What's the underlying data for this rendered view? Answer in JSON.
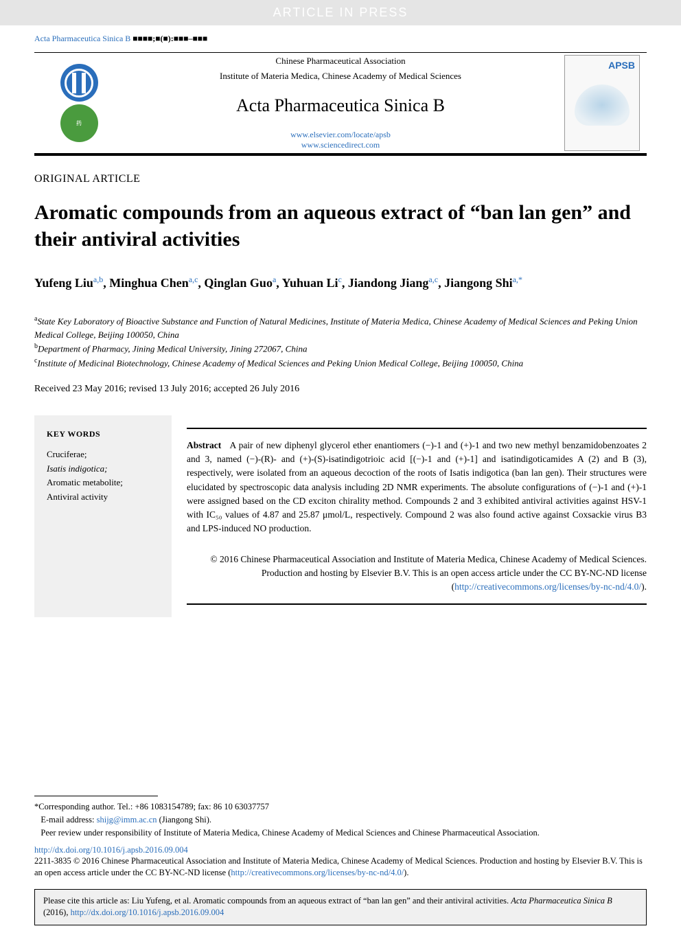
{
  "banner": "ARTICLE IN PRESS",
  "journalRef": {
    "journal": "Acta Pharmaceutica Sinica B",
    "issue": "■■■■;■(■):■■■–■■■"
  },
  "header": {
    "assoc": "Chinese Pharmaceutical Association",
    "inst": "Institute of Materia Medica, Chinese Academy of Medical Sciences",
    "journalName": "Acta Pharmaceutica Sinica B",
    "link1": "www.elsevier.com/locate/apsb",
    "link2": "www.sciencedirect.com",
    "coverLabel": "APSB"
  },
  "articleType": "ORIGINAL ARTICLE",
  "title": "Aromatic compounds from an aqueous extract of “ban lan gen” and their antiviral activities",
  "authors": [
    {
      "name": "Yufeng Liu",
      "sup": "a,b"
    },
    {
      "name": "Minghua Chen",
      "sup": "a,c"
    },
    {
      "name": "Qinglan Guo",
      "sup": "a"
    },
    {
      "name": "Yuhuan Li",
      "sup": "c"
    },
    {
      "name": "Jiandong Jiang",
      "sup": "a,c"
    },
    {
      "name": "Jiangong Shi",
      "sup": "a,",
      "star": true
    }
  ],
  "affiliations": [
    {
      "sup": "a",
      "text": "State Key Laboratory of Bioactive Substance and Function of Natural Medicines, Institute of Materia Medica, Chinese Academy of Medical Sciences and Peking Union Medical College, Beijing 100050, China"
    },
    {
      "sup": "b",
      "text": "Department of Pharmacy, Jining Medical University, Jining 272067, China"
    },
    {
      "sup": "c",
      "text": "Institute of Medicinal Biotechnology, Chinese Academy of Medical Sciences and Peking Union Medical College, Beijing 100050, China"
    }
  ],
  "dates": "Received 23 May 2016; revised 13 July 2016; accepted 26 July 2016",
  "keywords": {
    "heading": "KEY WORDS",
    "items": [
      {
        "text": "Cruciferae;",
        "italic": false
      },
      {
        "text": "Isatis indigotica;",
        "italic": true
      },
      {
        "text": "Aromatic metabolite;",
        "italic": false
      },
      {
        "text": "Antiviral activity",
        "italic": false
      }
    ]
  },
  "abstract": {
    "label": "Abstract",
    "body": "A pair of new diphenyl glycerol ether enantiomers (−)-1 and (+)-1 and two new methyl benzamidobenzoates 2 and 3, named (−)-(R)- and (+)-(S)-isatindigotrioic acid [(−)-1 and (+)-1] and isatindigoticamides A (2) and B (3), respectively, were isolated from an aqueous decoction of the roots of Isatis indigotica (ban lan gen). Their structures were elucidated by spectroscopic data analysis including 2D NMR experiments. The absolute configurations of (−)-1 and (+)-1 were assigned based on the CD exciton chirality method. Compounds 2 and 3 exhibited antiviral activities against HSV-1 with IC₅₀ values of 4.87 and 25.87 μmol/L, respectively. Compound 2 was also found active against Coxsackie virus B3 and LPS-induced NO production."
  },
  "copyright": {
    "text": "© 2016 Chinese Pharmaceutical Association and Institute of Materia Medica, Chinese Academy of Medical Sciences. Production and hosting by Elsevier B.V. This is an open access article under the CC BY-NC-ND license (",
    "linkText": "http://creativecommons.org/licenses/by-nc-nd/4.0/",
    "suffix": ")."
  },
  "corresponding": {
    "line1": "*Corresponding author. Tel.: +86 1083154789; fax: 86 10 63037757",
    "emailLabel": "E-mail address: ",
    "email": "shijg@imm.ac.cn",
    "emailSuffix": " (Jiangong Shi).",
    "peerReview": "Peer review under responsibility of Institute of Materia Medica, Chinese Academy of Medical Sciences and Chinese Pharmaceutical Association."
  },
  "doi": "http://dx.doi.org/10.1016/j.apsb.2016.09.004",
  "issn": {
    "prefix": "2211-3835 © 2016 Chinese Pharmaceutical Association and Institute of Materia Medica, Chinese Academy of Medical Sciences. Production and hosting by Elsevier B.V. This is an open access article under the CC BY-NC-ND license (",
    "link": "http://creativecommons.org/licenses/by-nc-nd/4.0/",
    "suffix": ")."
  },
  "citeBox": {
    "prefix": "Please cite this article as: Liu Yufeng, et al. Aromatic compounds from an aqueous extract of “ban lan gen” and their antiviral activities. ",
    "journal": "Acta Pharmaceutica Sinica B",
    "year": " (2016), ",
    "link": "http://dx.doi.org/10.1016/j.apsb.2016.09.004"
  },
  "colors": {
    "linkBlue": "#2a6ebb",
    "bannerBg": "#e5e5e5",
    "keywordsBg": "#f0f0f0",
    "logoBlue": "#2a6ebb",
    "logoGreen": "#4a9b3e"
  }
}
